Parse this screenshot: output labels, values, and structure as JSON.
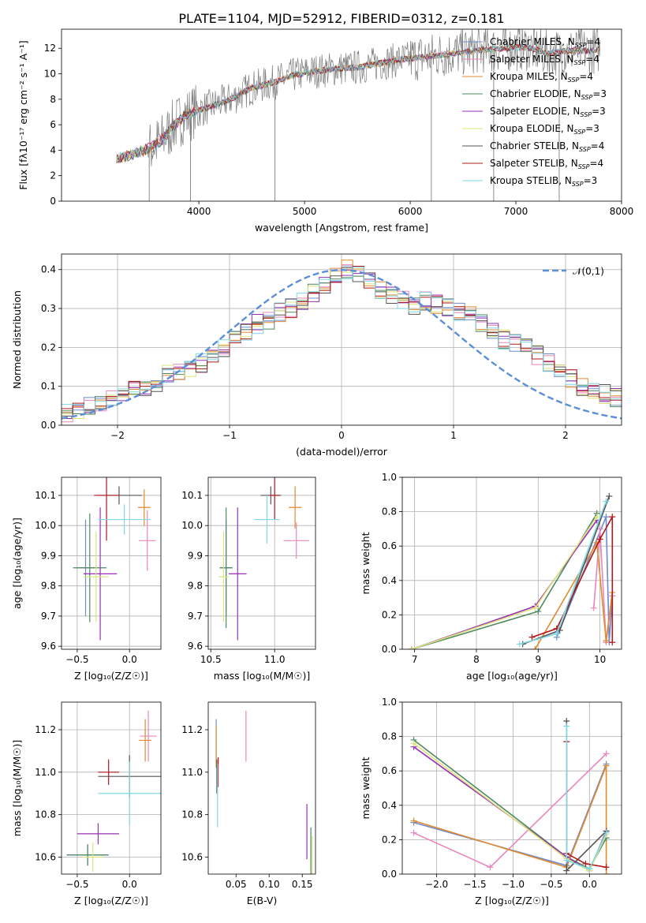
{
  "page_title": "PLATE=1104, MJD=52912, FIBERID=0312, z=0.181",
  "colors": {
    "Chabrier MILES": "#6e8bd0",
    "Salpeter MILES": "#ea85bd",
    "Kroupa MILES": "#e08a2e",
    "Chabrier ELODIE": "#4f8a5f",
    "Salpeter ELODIE": "#9a2fb6",
    "Kroupa ELODIE": "#dde57a",
    "Chabrier STELIB": "#555555",
    "Salpeter STELIB": "#b01818",
    "Kroupa STELIB": "#7fd8e6",
    "data": "#7f7f7f",
    "gaussian": "#5b8fd9"
  },
  "models": [
    "Chabrier MILES",
    "Salpeter MILES",
    "Kroupa MILES",
    "Chabrier ELODIE",
    "Salpeter ELODIE",
    "Kroupa ELODIE",
    "Chabrier STELIB",
    "Salpeter STELIB",
    "Kroupa STELIB"
  ],
  "chart_data": [
    {
      "id": "spectrum",
      "type": "line",
      "title": "PLATE=1104, MJD=52912, FIBERID=0312, z=0.181",
      "xlabel": "wavelength [Angstrom, rest frame]",
      "ylabel": "Flux [fλ10⁻¹⁷ erg cm⁻² s⁻¹ A⁻¹]",
      "xlim": [
        2700,
        8000
      ],
      "ylim": [
        0,
        13.5
      ],
      "xticks": [
        "4000",
        "5000",
        "6000",
        "7000",
        "8000"
      ],
      "yticks": [
        "0",
        "2",
        "4",
        "6",
        "8",
        "10",
        "12"
      ],
      "legend_position": "top-right",
      "legend": [
        {
          "model": "Chabrier MILES",
          "pre": "Chabrier MILES, N",
          "n": "4"
        },
        {
          "model": "Salpeter MILES",
          "pre": "Salpeter MILES, N",
          "n": "4"
        },
        {
          "model": "Kroupa MILES",
          "pre": "Kroupa MILES, N",
          "n": "4"
        },
        {
          "model": "Chabrier ELODIE",
          "pre": "Chabrier ELODIE, N",
          "n": "3"
        },
        {
          "model": "Salpeter ELODIE",
          "pre": "Salpeter ELODIE, N",
          "n": "3"
        },
        {
          "model": "Kroupa ELODIE",
          "pre": "Kroupa ELODIE, N",
          "n": "3"
        },
        {
          "model": "Chabrier STELIB",
          "pre": "Chabrier STELIB, N",
          "n": "4"
        },
        {
          "model": "Salpeter STELIB",
          "pre": "Salpeter STELIB, N",
          "n": "4"
        },
        {
          "model": "Kroupa STELIB",
          "pre": "Kroupa STELIB, N",
          "n": "3"
        }
      ],
      "continuum": [
        [
          3220,
          3.4
        ],
        [
          3350,
          3.6
        ],
        [
          3450,
          3.9
        ],
        [
          3550,
          4.2
        ],
        [
          3650,
          4.8
        ],
        [
          3750,
          5.8
        ],
        [
          3850,
          6.6
        ],
        [
          3950,
          7.0
        ],
        [
          4100,
          7.4
        ],
        [
          4300,
          8.0
        ],
        [
          4500,
          8.9
        ],
        [
          4700,
          9.3
        ],
        [
          4900,
          9.9
        ],
        [
          5100,
          10.2
        ],
        [
          5300,
          10.4
        ],
        [
          5500,
          10.5
        ],
        [
          5700,
          10.8
        ],
        [
          5900,
          11.1
        ],
        [
          6100,
          11.3
        ],
        [
          6300,
          11.5
        ],
        [
          6500,
          11.7
        ],
        [
          6700,
          11.9
        ],
        [
          6900,
          12.0
        ],
        [
          7100,
          12.1
        ],
        [
          7300,
          11.6
        ],
        [
          7500,
          11.8
        ],
        [
          7700,
          11.8
        ],
        [
          7800,
          11.9
        ]
      ],
      "spikes_down": [
        [
          3530,
          0
        ],
        [
          3920,
          0
        ],
        [
          4720,
          0
        ],
        [
          6200,
          0
        ],
        [
          6790,
          0
        ],
        [
          7410,
          0
        ]
      ]
    },
    {
      "id": "residuals",
      "type": "step",
      "xlabel": "(data-model)/error",
      "ylabel": "Normed distribution",
      "xlim": [
        -2.5,
        2.5
      ],
      "ylim": [
        0,
        0.44
      ],
      "xticks": [
        "-2",
        "-1",
        "0",
        "1",
        "2"
      ],
      "yticks": [
        "0.0",
        "0.1",
        "0.2",
        "0.3",
        "0.4"
      ],
      "grid": true,
      "legend": {
        "label": "𝒩(0,1)",
        "position": "top-right"
      },
      "bin_start": -2.5,
      "bin_width": 0.1,
      "hist": [
        0.03,
        0.04,
        0.05,
        0.06,
        0.07,
        0.08,
        0.09,
        0.1,
        0.11,
        0.13,
        0.14,
        0.15,
        0.16,
        0.18,
        0.2,
        0.22,
        0.24,
        0.26,
        0.27,
        0.29,
        0.3,
        0.32,
        0.34,
        0.36,
        0.38,
        0.4,
        0.39,
        0.37,
        0.35,
        0.33,
        0.32,
        0.31,
        0.32,
        0.31,
        0.3,
        0.29,
        0.28,
        0.26,
        0.24,
        0.22,
        0.21,
        0.2,
        0.18,
        0.16,
        0.14,
        0.12,
        0.1,
        0.09,
        0.08,
        0.07
      ]
    },
    {
      "id": "age-vs-Z",
      "type": "errorbar",
      "xlabel": "Z [log₁₀(Z/Z☉)]",
      "ylabel": "age  [log₁₀(age/yr)]",
      "xlim": [
        -0.65,
        0.3
      ],
      "ylim": [
        9.59,
        10.16
      ],
      "xticks": [
        "-0.5",
        "0.0"
      ],
      "yticks": [
        "9.6",
        "9.7",
        "9.8",
        "9.9",
        "10.0",
        "10.1"
      ],
      "grid": true,
      "points": [
        {
          "model": "Chabrier MILES",
          "x": -0.42,
          "xerr": 0.08,
          "y": 9.86,
          "yerr": 0.16
        },
        {
          "model": "Salpeter MILES",
          "x": 0.17,
          "xerr": 0.08,
          "y": 9.95,
          "yerr": 0.1
        },
        {
          "model": "Kroupa MILES",
          "x": 0.14,
          "xerr": 0.06,
          "y": 10.06,
          "yerr": 0.06
        },
        {
          "model": "Chabrier ELODIE",
          "x": -0.38,
          "xerr": 0.16,
          "y": 9.86,
          "yerr": 0.18
        },
        {
          "model": "Salpeter ELODIE",
          "x": -0.28,
          "xerr": 0.16,
          "y": 9.84,
          "yerr": 0.22
        },
        {
          "model": "Kroupa ELODIE",
          "x": -0.32,
          "xerr": 0.12,
          "y": 9.83,
          "yerr": 0.15
        },
        {
          "model": "Chabrier STELIB",
          "x": -0.1,
          "xerr": 0.22,
          "y": 10.1,
          "yerr": 0.03
        },
        {
          "model": "Salpeter STELIB",
          "x": -0.22,
          "xerr": 0.12,
          "y": 10.1,
          "yerr": 0.15
        },
        {
          "model": "Kroupa STELIB",
          "x": -0.05,
          "xerr": 0.25,
          "y": 10.02,
          "yerr": 0.05
        }
      ]
    },
    {
      "id": "age-vs-mass",
      "type": "errorbar",
      "xlabel": "mass [log₁₀(M/M☉)]",
      "xlim": [
        10.48,
        11.32
      ],
      "ylim": [
        9.59,
        10.16
      ],
      "xticks": [
        "10.5",
        "11.0"
      ],
      "yticks": [
        "9.6",
        "9.7",
        "9.8",
        "9.9",
        "10.0",
        "10.1"
      ],
      "grid": true,
      "points": [
        {
          "model": "Chabrier MILES",
          "x": 10.62,
          "xerr": 0.05,
          "y": 9.86,
          "yerr": 0.16
        },
        {
          "model": "Salpeter MILES",
          "x": 11.17,
          "xerr": 0.1,
          "y": 9.95,
          "yerr": 0.06
        },
        {
          "model": "Kroupa MILES",
          "x": 11.16,
          "xerr": 0.05,
          "y": 10.06,
          "yerr": 0.07
        },
        {
          "model": "Chabrier ELODIE",
          "x": 10.62,
          "xerr": 0.05,
          "y": 9.86,
          "yerr": 0.2
        },
        {
          "model": "Salpeter ELODIE",
          "x": 10.71,
          "xerr": 0.07,
          "y": 9.84,
          "yerr": 0.22
        },
        {
          "model": "Kroupa ELODIE",
          "x": 10.6,
          "xerr": 0.04,
          "y": 9.83,
          "yerr": 0.15
        },
        {
          "model": "Chabrier STELIB",
          "x": 10.97,
          "xerr": 0.08,
          "y": 10.1,
          "yerr": 0.03
        },
        {
          "model": "Salpeter STELIB",
          "x": 11.0,
          "xerr": 0.04,
          "y": 10.1,
          "yerr": 0.08
        },
        {
          "model": "Kroupa STELIB",
          "x": 10.94,
          "xerr": 0.1,
          "y": 10.02,
          "yerr": 0.08
        }
      ]
    },
    {
      "id": "massweight-vs-age",
      "type": "line",
      "xlabel": "age  [log₁₀(age/yr)]",
      "ylabel": "mass weight",
      "xlim": [
        6.8,
        10.35
      ],
      "ylim": [
        0,
        1
      ],
      "xticks": [
        "7",
        "8",
        "9",
        "10"
      ],
      "yticks": [
        "0.0",
        "0.2",
        "0.4",
        "0.6",
        "0.8",
        "1.0"
      ],
      "grid": true,
      "series": [
        {
          "model": "Chabrier MILES",
          "points": [
            [
              9.3,
              0.07
            ],
            [
              10.1,
              0.77
            ],
            [
              10.15,
              0.04
            ],
            [
              10.2,
              0.31
            ]
          ]
        },
        {
          "model": "Salpeter MILES",
          "points": [
            [
              9.9,
              0.24
            ],
            [
              10.0,
              0.7
            ],
            [
              10.1,
              0.04
            ],
            [
              10.2,
              0.31
            ]
          ]
        },
        {
          "model": "Kroupa MILES",
          "points": [
            [
              8.95,
              0.0
            ],
            [
              9.95,
              0.62
            ],
            [
              10.1,
              0.05
            ],
            [
              10.2,
              0.33
            ]
          ]
        },
        {
          "model": "Chabrier ELODIE",
          "points": [
            [
              6.95,
              0.0
            ],
            [
              9.0,
              0.22
            ],
            [
              9.95,
              0.79
            ]
          ]
        },
        {
          "model": "Salpeter ELODIE",
          "points": [
            [
              6.95,
              0.0
            ],
            [
              8.95,
              0.25
            ],
            [
              9.95,
              0.75
            ]
          ]
        },
        {
          "model": "Kroupa ELODIE",
          "points": [
            [
              6.95,
              0.0
            ],
            [
              8.95,
              0.24
            ],
            [
              9.95,
              0.77
            ]
          ]
        },
        {
          "model": "Chabrier STELIB",
          "points": [
            [
              8.75,
              0.03
            ],
            [
              9.35,
              0.11
            ],
            [
              10.15,
              0.89
            ]
          ]
        },
        {
          "model": "Salpeter STELIB",
          "points": [
            [
              8.9,
              0.07
            ],
            [
              9.3,
              0.12
            ],
            [
              10.0,
              0.64
            ],
            [
              10.2,
              0.77
            ],
            [
              10.2,
              0.04
            ]
          ]
        },
        {
          "model": "Kroupa STELIB",
          "points": [
            [
              8.7,
              0.03
            ],
            [
              9.3,
              0.09
            ],
            [
              10.1,
              0.86
            ]
          ]
        }
      ]
    },
    {
      "id": "mass-vs-Z",
      "type": "errorbar",
      "xlabel": "Z [log₁₀(Z/Z☉)]",
      "ylabel": "mass [log₁₀(M/M☉)]",
      "xlim": [
        -0.65,
        0.3
      ],
      "ylim": [
        10.52,
        11.33
      ],
      "xticks": [
        "-0.5",
        "0.0"
      ],
      "yticks": [
        "10.6",
        "10.8",
        "11.0",
        "11.2"
      ],
      "grid": true,
      "points": [
        {
          "model": "Chabrier MILES",
          "x": -0.4,
          "xerr": 0.2,
          "y": 10.61,
          "yerr": 0.05
        },
        {
          "model": "Salpeter MILES",
          "x": 0.18,
          "xerr": 0.08,
          "y": 11.17,
          "yerr": 0.12
        },
        {
          "model": "Kroupa MILES",
          "x": 0.15,
          "xerr": 0.06,
          "y": 11.15,
          "yerr": 0.1
        },
        {
          "model": "Chabrier ELODIE",
          "x": -0.4,
          "xerr": 0.2,
          "y": 10.61,
          "yerr": 0.05
        },
        {
          "model": "Salpeter ELODIE",
          "x": -0.3,
          "xerr": 0.2,
          "y": 10.71,
          "yerr": 0.05
        },
        {
          "model": "Kroupa ELODIE",
          "x": -0.35,
          "xerr": 0.1,
          "y": 10.6,
          "yerr": 0.07
        },
        {
          "model": "Chabrier STELIB",
          "x": 0.0,
          "xerr": 0.3,
          "y": 10.98,
          "yerr": 0.1
        },
        {
          "model": "Salpeter STELIB",
          "x": -0.2,
          "xerr": 0.1,
          "y": 11.0,
          "yerr": 0.06
        },
        {
          "model": "Kroupa STELIB",
          "x": 0.0,
          "xerr": 0.3,
          "y": 10.9,
          "yerr": 0.15
        }
      ]
    },
    {
      "id": "mass-vs-EBV",
      "type": "errorbar",
      "xlabel": "E(B-V)",
      "xlim": [
        0.008,
        0.17
      ],
      "ylim": [
        10.52,
        11.33
      ],
      "xticks": [
        "0.05",
        "0.10",
        "0.15"
      ],
      "yticks": [
        "10.6",
        "10.8",
        "11.0",
        "11.2"
      ],
      "grid": false,
      "points": [
        {
          "model": "Chabrier MILES",
          "x": 0.02,
          "xerr": 0,
          "y": 11.15,
          "yerr": 0.1
        },
        {
          "model": "Salpeter MILES",
          "x": 0.065,
          "xerr": 0,
          "y": 11.17,
          "yerr": 0.12
        },
        {
          "model": "Kroupa MILES",
          "x": 0.02,
          "xerr": 0,
          "y": 11.12,
          "yerr": 0.1
        },
        {
          "model": "Chabrier ELODIE",
          "x": 0.163,
          "xerr": 0,
          "y": 10.62,
          "yerr": 0.12
        },
        {
          "model": "Salpeter ELODIE",
          "x": 0.157,
          "xerr": 0,
          "y": 10.72,
          "yerr": 0.13
        },
        {
          "model": "Kroupa ELODIE",
          "x": 0.165,
          "xerr": 0,
          "y": 10.6,
          "yerr": 0.1
        },
        {
          "model": "Chabrier STELIB",
          "x": 0.021,
          "xerr": 0,
          "y": 10.98,
          "yerr": 0.08
        },
        {
          "model": "Salpeter STELIB",
          "x": 0.023,
          "xerr": 0,
          "y": 11.0,
          "yerr": 0.07
        },
        {
          "model": "Kroupa STELIB",
          "x": 0.022,
          "xerr": 0,
          "y": 10.89,
          "yerr": 0.15
        }
      ]
    },
    {
      "id": "massweight-vs-Z",
      "type": "line",
      "xlabel": "Z [log₁₀(Z/Z☉)]",
      "ylabel": "mass weight",
      "xlim": [
        -2.45,
        0.42
      ],
      "ylim": [
        0,
        1
      ],
      "xticks": [
        "-2.0",
        "-1.5",
        "-1.0",
        "-0.5",
        "0.0"
      ],
      "yticks": [
        "0.0",
        "0.2",
        "0.4",
        "0.6",
        "0.8",
        "1.0"
      ],
      "grid": true,
      "series": [
        {
          "model": "Chabrier MILES",
          "points": [
            [
              -2.3,
              0.3
            ],
            [
              -0.3,
              0.05
            ],
            [
              0.22,
              0.64
            ]
          ]
        },
        {
          "model": "Salpeter MILES",
          "points": [
            [
              -2.3,
              0.24
            ],
            [
              -1.3,
              0.04
            ],
            [
              0.22,
              0.7
            ]
          ]
        },
        {
          "model": "Kroupa MILES",
          "points": [
            [
              -2.3,
              0.31
            ],
            [
              -0.3,
              0.04
            ],
            [
              0.22,
              0.63
            ],
            [
              0.22,
              0.0
            ]
          ]
        },
        {
          "model": "Chabrier ELODIE",
          "points": [
            [
              -2.3,
              0.78
            ],
            [
              -0.3,
              0.1
            ],
            [
              0.0,
              0.03
            ],
            [
              0.22,
              0.21
            ]
          ]
        },
        {
          "model": "Salpeter ELODIE",
          "points": [
            [
              -2.3,
              0.74
            ],
            [
              -0.3,
              0.1
            ],
            [
              0.0,
              0.02
            ],
            [
              0.22,
              0.25
            ]
          ]
        },
        {
          "model": "Kroupa ELODIE",
          "points": [
            [
              -2.3,
              0.76
            ],
            [
              -0.3,
              0.09
            ],
            [
              0.0,
              0.02
            ],
            [
              0.22,
              0.23
            ]
          ]
        },
        {
          "model": "Chabrier STELIB",
          "points": [
            [
              -0.3,
              0.89
            ],
            [
              -0.3,
              0.02
            ],
            [
              0.22,
              0.25
            ]
          ]
        },
        {
          "model": "Salpeter STELIB",
          "points": [
            [
              -0.3,
              0.77
            ],
            [
              -0.3,
              0.12
            ],
            [
              -0.05,
              0.06
            ],
            [
              0.22,
              0.04
            ]
          ]
        },
        {
          "model": "Kroupa STELIB",
          "points": [
            [
              -0.3,
              0.86
            ],
            [
              -0.3,
              0.08
            ],
            [
              0.0,
              0.03
            ],
            [
              0.22,
              0.24
            ]
          ]
        }
      ]
    }
  ]
}
